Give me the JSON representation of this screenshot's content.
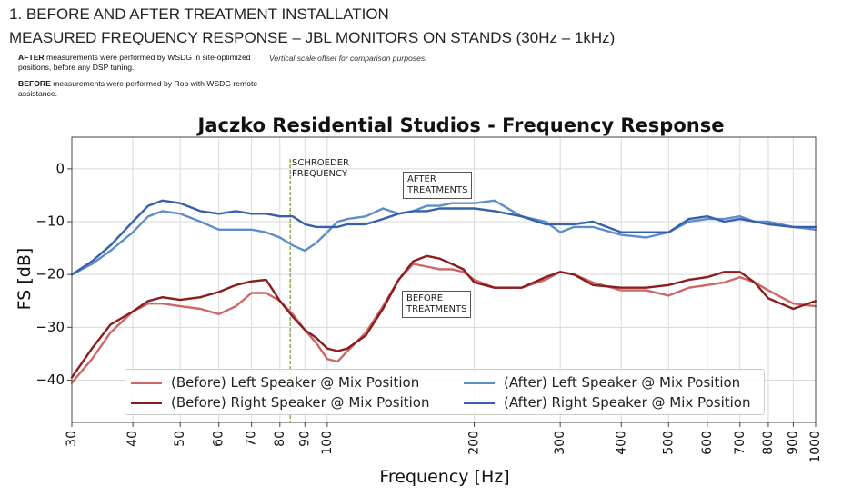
{
  "header": {
    "line1": "1. BEFORE AND AFTER TREATMENT INSTALLATION",
    "line2": "MEASURED FREQUENCY RESPONSE – JBL MONITORS ON STANDS (30Hz – 1kHz)"
  },
  "notes": {
    "after_bold": "AFTER",
    "after_text": " measurements were performed by WSDG in site-optimized positions, before any DSP tuning.",
    "before_bold": "BEFORE",
    "before_text": " measurements were performed by Rob with WSDG remote assistance.",
    "offset_note": "Vertical scale offset for comparison purposes."
  },
  "chart_data": {
    "type": "line",
    "title": "Jaczko Residential Studios - Frequency Response",
    "xlabel": "Frequency [Hz]",
    "ylabel": "FS [dB]",
    "xscale": "log",
    "xlim": [
      30,
      1000
    ],
    "ylim": [
      -48,
      6
    ],
    "xticks": [
      30,
      40,
      50,
      60,
      70,
      80,
      90,
      100,
      200,
      300,
      400,
      500,
      600,
      700,
      800,
      900,
      1000
    ],
    "yticks": [
      0,
      -10,
      -20,
      -30,
      -40
    ],
    "grid": true,
    "legend_position": "bottom",
    "annotations": {
      "schroeder": {
        "text": "SCHROEDER\nFREQUENCY",
        "x": 84
      },
      "after": {
        "text": "AFTER\nTREATMENTS"
      },
      "before": {
        "text": "BEFORE\nTREATMENTS"
      }
    },
    "series": [
      {
        "name": "(Before) Left Speaker @ Mix Position",
        "color": "#cd6767",
        "x": [
          30,
          33,
          36,
          40,
          43,
          46,
          50,
          55,
          60,
          65,
          70,
          75,
          80,
          85,
          90,
          95,
          100,
          105,
          110,
          120,
          130,
          140,
          150,
          160,
          170,
          180,
          190,
          200,
          220,
          250,
          280,
          300,
          320,
          350,
          400,
          450,
          500,
          550,
          600,
          650,
          700,
          750,
          800,
          900,
          1000
        ],
        "y": [
          -40.5,
          -36,
          -31,
          -27,
          -25.5,
          -25.5,
          -26,
          -26.5,
          -27.5,
          -26,
          -23.5,
          -23.5,
          -25,
          -27.5,
          -30.5,
          -33,
          -36,
          -36.5,
          -34.5,
          -31,
          -26,
          -21,
          -18,
          -18.5,
          -19,
          -19,
          -19.5,
          -21,
          -22.5,
          -22.5,
          -21,
          -19.5,
          -20,
          -21.5,
          -23,
          -23,
          -24,
          -22.5,
          -22,
          -21.5,
          -20.5,
          -21.5,
          -23,
          -25.5,
          -26
        ]
      },
      {
        "name": "(Before) Right Speaker @ Mix Position",
        "color": "#8b1c1c",
        "x": [
          30,
          33,
          36,
          40,
          43,
          46,
          50,
          55,
          60,
          65,
          70,
          75,
          80,
          85,
          90,
          95,
          100,
          105,
          110,
          120,
          130,
          140,
          150,
          160,
          170,
          180,
          190,
          200,
          220,
          250,
          280,
          300,
          320,
          350,
          400,
          450,
          500,
          550,
          600,
          650,
          700,
          750,
          800,
          900,
          1000
        ],
        "y": [
          -39.5,
          -34,
          -29.5,
          -27,
          -25,
          -24.3,
          -24.8,
          -24.3,
          -23.3,
          -22,
          -21.3,
          -21,
          -25,
          -28,
          -30.5,
          -32,
          -34,
          -34.5,
          -34,
          -31.5,
          -26.5,
          -21,
          -17.5,
          -16.5,
          -17,
          -18,
          -19,
          -21.5,
          -22.5,
          -22.5,
          -20.5,
          -19.5,
          -20,
          -22,
          -22.5,
          -22.5,
          -22,
          -21,
          -20.5,
          -19.5,
          -19.5,
          -21.5,
          -24.5,
          -26.5,
          -25
        ]
      },
      {
        "name": "(After) Left Speaker @ Mix Position",
        "color": "#5e8ec9",
        "x": [
          30,
          33,
          36,
          40,
          43,
          46,
          50,
          55,
          60,
          65,
          70,
          75,
          80,
          85,
          90,
          95,
          100,
          105,
          110,
          120,
          130,
          140,
          150,
          160,
          170,
          180,
          190,
          200,
          220,
          250,
          280,
          300,
          320,
          350,
          400,
          450,
          500,
          550,
          600,
          650,
          700,
          750,
          800,
          900,
          1000
        ],
        "y": [
          -20,
          -18,
          -15.5,
          -12,
          -9,
          -8,
          -8.5,
          -10,
          -11.5,
          -11.5,
          -11.5,
          -12,
          -13,
          -14.5,
          -15.5,
          -14,
          -12,
          -10,
          -9.5,
          -9,
          -7.5,
          -8.5,
          -8,
          -7,
          -7,
          -6.5,
          -6.5,
          -6.5,
          -6,
          -9,
          -10,
          -12,
          -11,
          -11,
          -12.5,
          -13,
          -12,
          -10,
          -9.5,
          -9.5,
          -9,
          -10,
          -10,
          -11,
          -11.5
        ]
      },
      {
        "name": "(After) Right Speaker @ Mix Position",
        "color": "#3660ab",
        "x": [
          30,
          33,
          36,
          40,
          43,
          46,
          50,
          55,
          60,
          65,
          70,
          75,
          80,
          85,
          90,
          95,
          100,
          105,
          110,
          120,
          130,
          140,
          150,
          160,
          170,
          180,
          190,
          200,
          220,
          250,
          280,
          300,
          320,
          350,
          400,
          450,
          500,
          550,
          600,
          650,
          700,
          750,
          800,
          900,
          1000
        ],
        "y": [
          -20,
          -17.5,
          -14.5,
          -10,
          -7,
          -6,
          -6.5,
          -8,
          -8.5,
          -8,
          -8.5,
          -8.5,
          -9,
          -9,
          -10.5,
          -11,
          -11,
          -11,
          -10.5,
          -10.5,
          -9.5,
          -8.5,
          -8,
          -8,
          -7.5,
          -7.5,
          -7.5,
          -7.5,
          -8,
          -9,
          -10.5,
          -10.5,
          -10.5,
          -10,
          -12,
          -12,
          -12,
          -9.5,
          -9,
          -10,
          -9.5,
          -10,
          -10.5,
          -11,
          -11
        ]
      }
    ]
  }
}
